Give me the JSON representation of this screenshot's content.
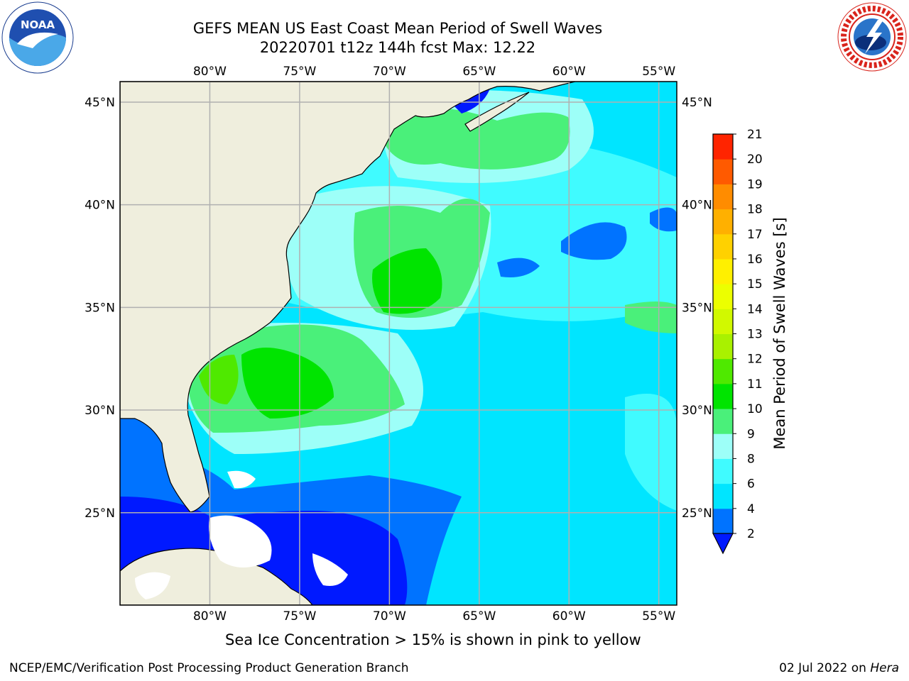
{
  "header": {
    "title_line1": "GEFS MEAN US East Coast Mean Period of Swell Waves",
    "title_line2": "20220701 t12z 144h fcst   Max: 12.22"
  },
  "logos": {
    "left": "noaa-logo",
    "left_text": "NOAA",
    "right": "nws-logo"
  },
  "map": {
    "lon_labels": [
      "80°W",
      "75°W",
      "70°W",
      "65°W",
      "60°W",
      "55°W"
    ],
    "lat_labels": [
      "45°N",
      "40°N",
      "35°N",
      "30°N",
      "25°N"
    ],
    "lon_range": [
      -85,
      -54
    ],
    "lat_range": [
      20.5,
      46
    ],
    "land_color": "#efeedd",
    "grid_color": "#b0b0b0"
  },
  "colorbar": {
    "label": "Mean Period of Swell Waves [s]",
    "ticks": [
      "2",
      "4",
      "6",
      "8",
      "9",
      "10",
      "11",
      "12",
      "13",
      "14",
      "15",
      "16",
      "17",
      "18",
      "19",
      "20",
      "21"
    ],
    "colors": [
      "#0073ff",
      "#00e5ff",
      "#40fbff",
      "#9dfff8",
      "#4af07a",
      "#00e400",
      "#4fe900",
      "#a9f100",
      "#d1f900",
      "#ecff00",
      "#fff000",
      "#ffd100",
      "#ffb000",
      "#ff8c00",
      "#ff5a00",
      "#ff2400",
      "#ff0000"
    ],
    "under_color": "#0019ff"
  },
  "footer": {
    "caption": "Sea Ice Concentration > 15% is shown in pink to yellow",
    "left": "NCEP/EMC/Verification Post Processing Product Generation Branch",
    "right_date": "02 Jul 2022 on ",
    "right_host": "Hera"
  }
}
